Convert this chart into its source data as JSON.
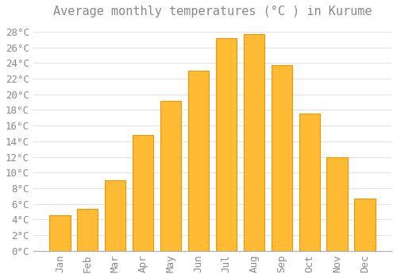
{
  "title": "Average monthly temperatures (°C ) in Kurume",
  "months": [
    "Jan",
    "Feb",
    "Mar",
    "Apr",
    "May",
    "Jun",
    "Jul",
    "Aug",
    "Sep",
    "Oct",
    "Nov",
    "Dec"
  ],
  "temperatures": [
    4.5,
    5.3,
    9.0,
    14.8,
    19.2,
    23.0,
    27.2,
    27.7,
    23.7,
    17.5,
    12.0,
    6.7
  ],
  "bar_color": "#FFBB33",
  "bar_edge_color": "#E8960A",
  "background_color": "#FFFFFF",
  "grid_color": "#DDDDDD",
  "text_color": "#888888",
  "ylim": [
    0,
    29
  ],
  "yticks": [
    0,
    2,
    4,
    6,
    8,
    10,
    12,
    14,
    16,
    18,
    20,
    22,
    24,
    26,
    28
  ],
  "title_fontsize": 11,
  "tick_fontsize": 9,
  "font_family": "monospace"
}
